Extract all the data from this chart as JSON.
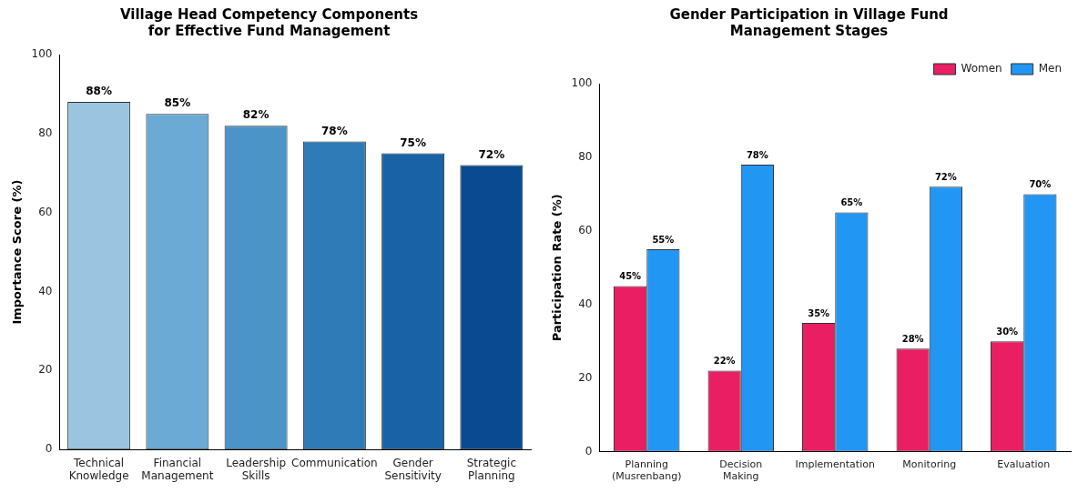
{
  "chart_data": [
    {
      "type": "bar",
      "title": "Village Head Competency Components\nfor Effective Fund Management",
      "ylabel": "Importance Score (%)",
      "categories": [
        "Technical Knowledge",
        "Financial Management",
        "Leadership Skills",
        "Communication",
        "Gender Sensitivity",
        "Strategic Planning"
      ],
      "values": [
        88,
        85,
        82,
        78,
        75,
        72
      ],
      "value_labels": [
        "88%",
        "85%",
        "82%",
        "78%",
        "75%",
        "72%"
      ],
      "colors": [
        "#9ac4e0",
        "#6aaad4",
        "#4a94c8",
        "#2e7bb8",
        "#1a62a6",
        "#0a4a90"
      ],
      "ylim": [
        0,
        100
      ],
      "yticks": [
        0,
        20,
        40,
        60,
        80,
        100
      ],
      "grid": false,
      "legend": false
    },
    {
      "type": "bar",
      "title": "Gender Participation in Village Fund\nManagement Stages",
      "ylabel": "Participation Rate (%)",
      "categories": [
        "Planning (Musrenbang)",
        "Decision Making",
        "Implementation",
        "Monitoring",
        "Evaluation"
      ],
      "series": [
        {
          "name": "Women",
          "color": "#e91e63",
          "values": [
            45,
            22,
            35,
            28,
            30
          ],
          "value_labels": [
            "45%",
            "22%",
            "35%",
            "28%",
            "30%"
          ]
        },
        {
          "name": "Men",
          "color": "#2196f3",
          "values": [
            55,
            78,
            65,
            72,
            70
          ],
          "value_labels": [
            "55%",
            "78%",
            "65%",
            "72%",
            "70%"
          ]
        }
      ],
      "ylim": [
        0,
        100
      ],
      "yticks": [
        0,
        20,
        40,
        60,
        80,
        100
      ],
      "grid": false,
      "legend": "top right"
    }
  ]
}
